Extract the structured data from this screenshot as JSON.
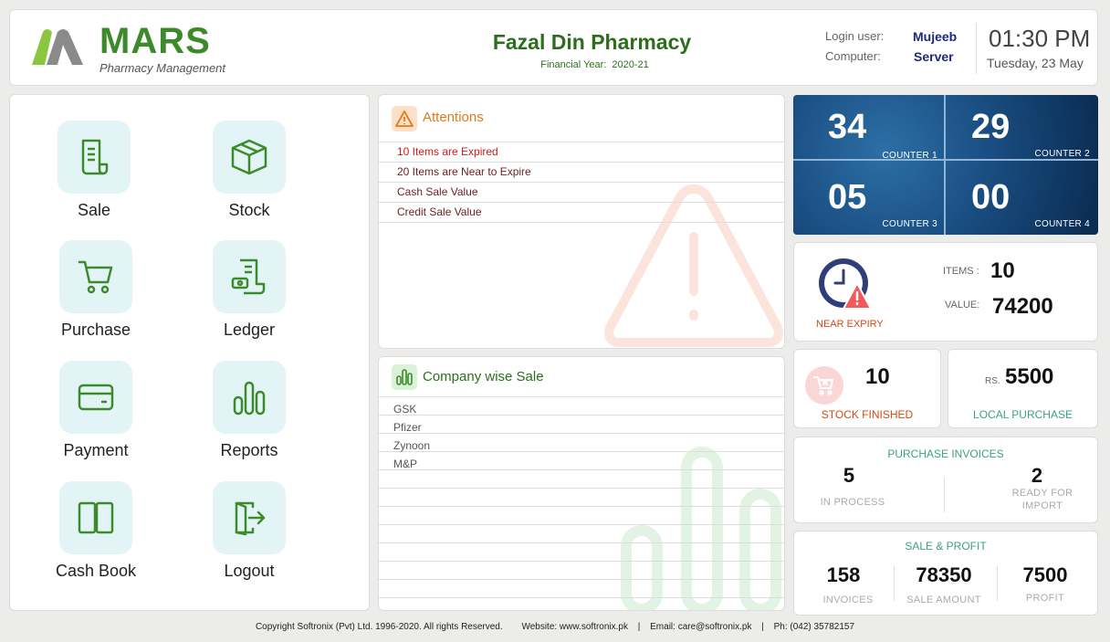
{
  "header": {
    "brand": "MARS",
    "tagline": "Pharmacy Management",
    "pharmacy_name": "Fazal Din Pharmacy",
    "financial_year_label": "Financial Year:",
    "financial_year": "2020-21",
    "login_user_label": "Login user:",
    "login_user": "Mujeeb",
    "computer_label": "Computer:",
    "computer": "Server",
    "time": "01:30 PM",
    "date": "Tuesday, 23 May"
  },
  "menu": [
    {
      "label": "Sale",
      "icon": "receipt-icon"
    },
    {
      "label": "Stock",
      "icon": "box-icon"
    },
    {
      "label": "Purchase",
      "icon": "cart-icon"
    },
    {
      "label": "Ledger",
      "icon": "ledger-icon"
    },
    {
      "label": "Payment",
      "icon": "card-icon"
    },
    {
      "label": "Reports",
      "icon": "bar-chart-icon"
    },
    {
      "label": "Cash Book",
      "icon": "book-icon"
    },
    {
      "label": "Logout",
      "icon": "logout-icon"
    }
  ],
  "attentions": {
    "title": "Attentions",
    "items": [
      "10 Items are Expired",
      "20 Items are Near to Expire",
      "Cash Sale Value",
      "Credit Sale Value"
    ]
  },
  "company_sale": {
    "title": "Company wise Sale",
    "items": [
      "GSK",
      "Pfizer",
      "Zynoon",
      "M&P"
    ]
  },
  "counters": [
    {
      "value": "34",
      "label": "COUNTER 1"
    },
    {
      "value": "29",
      "label": "COUNTER 2"
    },
    {
      "value": "05",
      "label": "COUNTER 3"
    },
    {
      "value": "00",
      "label": "COUNTER 4"
    }
  ],
  "near_expiry": {
    "label": "NEAR EXPIRY",
    "items_label": "ITEMS :",
    "items": "10",
    "value_label": "VALUE:",
    "value": "74200"
  },
  "stock_finished": {
    "value": "10",
    "label": "STOCK FINISHED"
  },
  "local_purchase": {
    "currency": "RS.",
    "value": "5500",
    "label": "LOCAL PURCHASE"
  },
  "purchase_invoices": {
    "title": "PURCHASE INVOICES",
    "in_process": "5",
    "in_process_label": "IN PROCESS",
    "ready": "2",
    "ready_label_1": "READY FOR",
    "ready_label_2": "IMPORT"
  },
  "sale_profit": {
    "title": "SALE & PROFIT",
    "invoices": "158",
    "invoices_label": "INVOICES",
    "sale_amount": "78350",
    "sale_amount_label": "SALE AMOUNT",
    "profit": "7500",
    "profit_label": "PROFIT"
  },
  "footer": {
    "copyright": "Copyright Softronix (Pvt) Ltd. 1996-2020. All rights Reserved.",
    "website": "Website: www.softronix.pk",
    "email": "Email:  care@softronix.pk",
    "phone": "Ph: (042) 35782157",
    "sep": "|"
  },
  "colors": {
    "brand_green": "#3d8a2a",
    "accent_orange": "#e07b1a",
    "counter_blue": "#1a4e82",
    "teal": "#3aa37c"
  }
}
